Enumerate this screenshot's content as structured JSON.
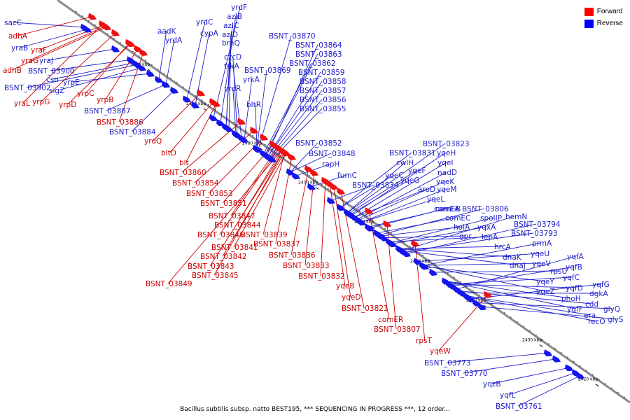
{
  "legend": [
    {
      "label": "Forward",
      "color": "#ff0000"
    },
    {
      "label": "Reverse",
      "color": "#0000ff"
    }
  ],
  "caption": "Bacillus subtilis subsp. natto BEST195, *** SEQUENCING IN PROGRESS ***, 12 order...",
  "colors": {
    "forward_arrow": "#ee1111",
    "reverse_arrow": "#1515ee",
    "forward_label": "#cc0000",
    "reverse_label": "#2020cc",
    "backbone": "#8a8a8a"
  },
  "scale_marks": [
    "2500 kbp",
    "2490 kbp",
    "2480 kbp",
    "2470 kbp",
    "2460 kbp",
    "2450 kbp",
    "2440 kbp",
    "2430 kbp",
    "2420 kbp",
    "2410 kbp"
  ],
  "genes": [
    {
      "name": "sacC",
      "strand": "reverse"
    },
    {
      "name": "adhA",
      "strand": "forward"
    },
    {
      "name": "yraB",
      "strand": "reverse"
    },
    {
      "name": "yraF",
      "strand": "forward"
    },
    {
      "name": "yraG",
      "strand": "forward"
    },
    {
      "name": "yraJ",
      "strand": "reverse"
    },
    {
      "name": "adhB",
      "strand": "forward"
    },
    {
      "name": "BSNT_03900",
      "strand": "reverse"
    },
    {
      "name": "csn",
      "strand": "reverse"
    },
    {
      "name": "yrpE",
      "strand": "reverse"
    },
    {
      "name": "BSNT_03902",
      "strand": "reverse"
    },
    {
      "name": "sigZ",
      "strand": "reverse"
    },
    {
      "name": "yrpC",
      "strand": "forward"
    },
    {
      "name": "yraL",
      "strand": "forward"
    },
    {
      "name": "yrpG",
      "strand": "forward"
    },
    {
      "name": "yrpD",
      "strand": "forward"
    },
    {
      "name": "yrpB",
      "strand": "forward"
    },
    {
      "name": "BSNT_03887",
      "strand": "reverse"
    },
    {
      "name": "BSNT_03886",
      "strand": "forward"
    },
    {
      "name": "BSNT_03884",
      "strand": "reverse"
    },
    {
      "name": "yrdQ",
      "strand": "forward"
    },
    {
      "name": "bltD",
      "strand": "forward"
    },
    {
      "name": "blt",
      "strand": "forward"
    },
    {
      "name": "BSNT_03860",
      "strand": "forward"
    },
    {
      "name": "BSNT_03854",
      "strand": "forward"
    },
    {
      "name": "BSNT_03853",
      "strand": "forward"
    },
    {
      "name": "BSNT_03851",
      "strand": "forward"
    },
    {
      "name": "BSNT_03847",
      "strand": "forward"
    },
    {
      "name": "BSNT_03844",
      "strand": "forward"
    },
    {
      "name": "BSNT_03846",
      "strand": "forward"
    },
    {
      "name": "BSNT_03839",
      "strand": "forward"
    },
    {
      "name": "BSNT_03841",
      "strand": "forward"
    },
    {
      "name": "BSNT_03837",
      "strand": "forward"
    },
    {
      "name": "BSNT_03842",
      "strand": "forward"
    },
    {
      "name": "BSNT_03836",
      "strand": "forward"
    },
    {
      "name": "BSNT_03843",
      "strand": "forward"
    },
    {
      "name": "BSNT_03833",
      "strand": "forward"
    },
    {
      "name": "BSNT_03845",
      "strand": "forward"
    },
    {
      "name": "BSNT_03832",
      "strand": "forward"
    },
    {
      "name": "BSNT_03849",
      "strand": "forward"
    },
    {
      "name": "yqeB",
      "strand": "forward"
    },
    {
      "name": "yqeD",
      "strand": "forward"
    },
    {
      "name": "BSNT_03821",
      "strand": "forward"
    },
    {
      "name": "comER",
      "strand": "forward"
    },
    {
      "name": "BSNT_03807",
      "strand": "forward"
    },
    {
      "name": "rpsT",
      "strand": "forward"
    },
    {
      "name": "yqeW",
      "strand": "forward"
    },
    {
      "name": "aadK",
      "strand": "reverse"
    },
    {
      "name": "yrdA",
      "strand": "reverse"
    },
    {
      "name": "yrdC",
      "strand": "reverse"
    },
    {
      "name": "cypA",
      "strand": "reverse"
    },
    {
      "name": "yrdF",
      "strand": "reverse"
    },
    {
      "name": "azlB",
      "strand": "reverse"
    },
    {
      "name": "azlC",
      "strand": "reverse"
    },
    {
      "name": "azlD",
      "strand": "reverse"
    },
    {
      "name": "brnQ",
      "strand": "reverse"
    },
    {
      "name": "czcD",
      "strand": "reverse"
    },
    {
      "name": "trkA",
      "strand": "reverse"
    },
    {
      "name": "yrkA",
      "strand": "reverse"
    },
    {
      "name": "yrdR",
      "strand": "reverse"
    },
    {
      "name": "bltR",
      "strand": "reverse"
    },
    {
      "name": "BSNT_03870",
      "strand": "reverse"
    },
    {
      "name": "BSNT_03864",
      "strand": "reverse"
    },
    {
      "name": "BSNT_03863",
      "strand": "reverse"
    },
    {
      "name": "BSNT_03862",
      "strand": "reverse"
    },
    {
      "name": "BSNT_03869",
      "strand": "reverse"
    },
    {
      "name": "BSNT_03859",
      "strand": "reverse"
    },
    {
      "name": "BSNT_03858",
      "strand": "reverse"
    },
    {
      "name": "BSNT_03857",
      "strand": "reverse"
    },
    {
      "name": "BSNT_03856",
      "strand": "reverse"
    },
    {
      "name": "BSNT_03855",
      "strand": "reverse"
    },
    {
      "name": "BSNT_03852",
      "strand": "reverse"
    },
    {
      "name": "BSNT_03848",
      "strand": "reverse"
    },
    {
      "name": "rapH",
      "strand": "reverse"
    },
    {
      "name": "fumC",
      "strand": "reverse"
    },
    {
      "name": "BSNT_03834",
      "strand": "reverse"
    },
    {
      "name": "BSNT_03831",
      "strand": "reverse"
    },
    {
      "name": "BSNT_03823",
      "strand": "reverse"
    },
    {
      "name": "yqeH",
      "strand": "reverse"
    },
    {
      "name": "cwlH",
      "strand": "reverse"
    },
    {
      "name": "yqeI",
      "strand": "reverse"
    },
    {
      "name": "yqeC",
      "strand": "reverse"
    },
    {
      "name": "yqeF",
      "strand": "reverse"
    },
    {
      "name": "nadD",
      "strand": "reverse"
    },
    {
      "name": "yqeG",
      "strand": "reverse"
    },
    {
      "name": "yqeK",
      "strand": "reverse"
    },
    {
      "name": "aroD",
      "strand": "reverse"
    },
    {
      "name": "yqeM",
      "strand": "reverse"
    },
    {
      "name": "yqeL",
      "strand": "reverse"
    },
    {
      "name": "comEB",
      "strand": "reverse"
    },
    {
      "name": "comEA",
      "strand": "reverse"
    },
    {
      "name": "BSNT_03806",
      "strand": "reverse"
    },
    {
      "name": "comEC",
      "strand": "reverse"
    },
    {
      "name": "spoIIP",
      "strand": "reverse"
    },
    {
      "name": "hemN",
      "strand": "reverse"
    },
    {
      "name": "holA",
      "strand": "reverse"
    },
    {
      "name": "yqxA",
      "strand": "reverse"
    },
    {
      "name": "BSNT_03794",
      "strand": "reverse"
    },
    {
      "name": "gpr",
      "strand": "reverse"
    },
    {
      "name": "lepA",
      "strand": "reverse"
    },
    {
      "name": "BSNT_03793",
      "strand": "reverse"
    },
    {
      "name": "hrcA",
      "strand": "reverse"
    },
    {
      "name": "prmA",
      "strand": "reverse"
    },
    {
      "name": "dnaK",
      "strand": "reverse"
    },
    {
      "name": "yqeU",
      "strand": "reverse"
    },
    {
      "name": "dnaJ",
      "strand": "reverse"
    },
    {
      "name": "yqeV",
      "strand": "reverse"
    },
    {
      "name": "yqfA",
      "strand": "reverse"
    },
    {
      "name": "rpsU",
      "strand": "reverse"
    },
    {
      "name": "yqfB",
      "strand": "reverse"
    },
    {
      "name": "yqeY",
      "strand": "reverse"
    },
    {
      "name": "yqfC",
      "strand": "reverse"
    },
    {
      "name": "yqeZ",
      "strand": "reverse"
    },
    {
      "name": "yqfD",
      "strand": "reverse"
    },
    {
      "name": "yqfG",
      "strand": "reverse"
    },
    {
      "name": "phoH",
      "strand": "reverse"
    },
    {
      "name": "dgkA",
      "strand": "reverse"
    },
    {
      "name": "yqfF",
      "strand": "reverse"
    },
    {
      "name": "cdd",
      "strand": "reverse"
    },
    {
      "name": "era",
      "strand": "reverse"
    },
    {
      "name": "glyQ",
      "strand": "reverse"
    },
    {
      "name": "recO",
      "strand": "reverse"
    },
    {
      "name": "glyS",
      "strand": "reverse"
    },
    {
      "name": "BSNT_03773",
      "strand": "reverse"
    },
    {
      "name": "BSNT_03770",
      "strand": "reverse"
    },
    {
      "name": "yqzB",
      "strand": "reverse"
    },
    {
      "name": "yqfL",
      "strand": "reverse"
    },
    {
      "name": "BSNT_03761",
      "strand": "reverse"
    }
  ]
}
